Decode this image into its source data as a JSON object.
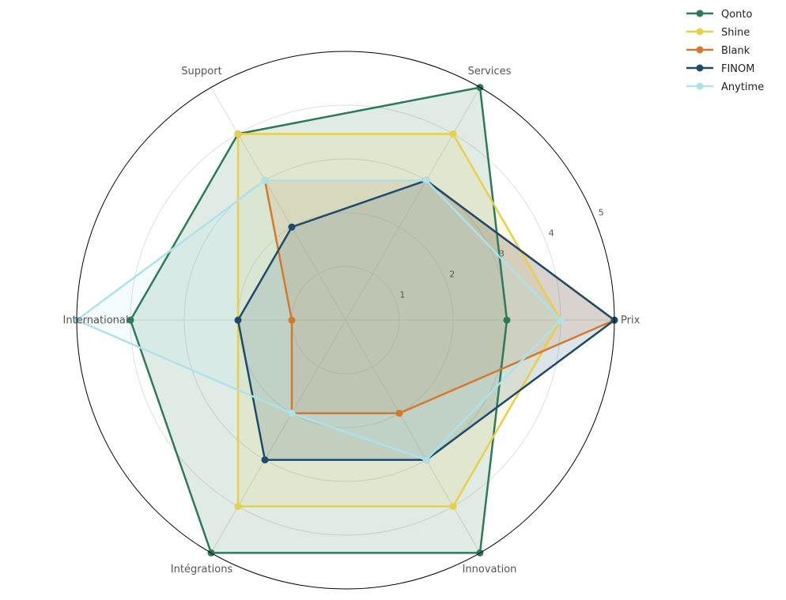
{
  "chart_data": {
    "type": "radar",
    "title": "",
    "axes": [
      "Prix",
      "Services",
      "Support",
      "International",
      "Intégrations",
      "Innovation"
    ],
    "rlim": [
      0,
      5
    ],
    "rticks": [
      1,
      2,
      3,
      4,
      5
    ],
    "rtick_labels": [
      "1",
      "2",
      "3",
      "4",
      "5"
    ],
    "grid": true,
    "legend_position": "top-right",
    "series": [
      {
        "name": "Qonto",
        "color": "#2e7a58",
        "values": [
          3,
          5,
          4,
          4,
          5,
          5
        ]
      },
      {
        "name": "Shine",
        "color": "#e7cf4a",
        "values": [
          4,
          4,
          4,
          2,
          4,
          4
        ]
      },
      {
        "name": "Blank",
        "color": "#d4782e",
        "values": [
          5,
          3,
          3,
          1,
          2,
          2
        ]
      },
      {
        "name": "FINOM",
        "color": "#1e4a6b",
        "values": [
          5,
          3,
          2,
          2,
          3,
          3
        ]
      },
      {
        "name": "Anytime",
        "color": "#aee2ea",
        "values": [
          4,
          3,
          3,
          5,
          2,
          3
        ]
      }
    ]
  }
}
